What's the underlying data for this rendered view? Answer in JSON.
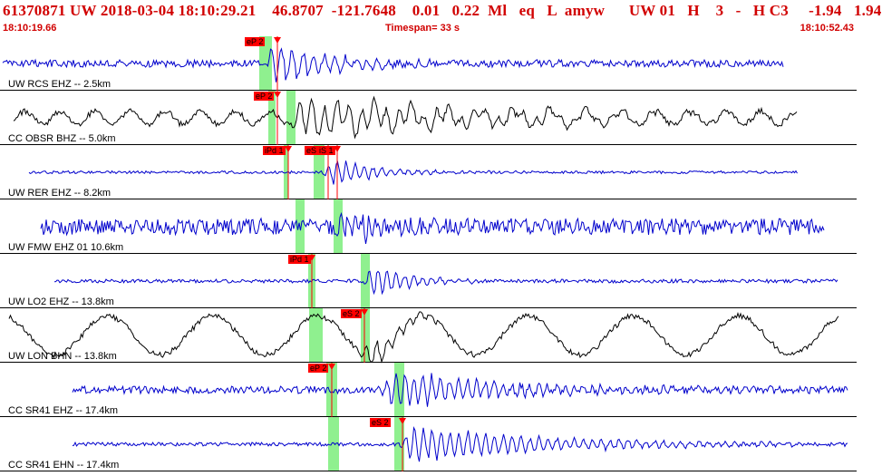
{
  "header": {
    "event_line": "61370871 UW 2018-03-04 18:10:29.21    46.8707  -121.7648    0.01   0.22  Ml   eq   L  amyw      UW 01   H    3   -   H C3     -1.94   1.94",
    "start_time": "18:10:19.66",
    "timespan": "Timespan=  33 s",
    "end_time": "18:10:52.43"
  },
  "colors": {
    "header_text": "#d10000",
    "trace_blue": "#0000cc",
    "trace_black": "#000000",
    "pick_band": "#8ff08f",
    "pick_marker": "#ff0000",
    "separator": "#000000"
  },
  "traces": [
    {
      "label": "UW RCS EHZ -- 2.5km",
      "color": "blue",
      "picks": [
        {
          "label": "eP 2"
        }
      ]
    },
    {
      "label": "CC OBSR BHZ -- 5.0km",
      "color": "black",
      "picks": [
        {
          "label": "eP 2"
        }
      ]
    },
    {
      "label": "UW RER EHZ -- 8.2km",
      "color": "blue",
      "picks": [
        {
          "label": "iPd 1"
        },
        {
          "label": "eS 2"
        },
        {
          "label": "iS 1"
        }
      ]
    },
    {
      "label": "UW FMW EHZ 01 10.6km",
      "color": "blue",
      "picks": []
    },
    {
      "label": "UW LO2 EHZ -- 13.8km",
      "color": "blue",
      "picks": [
        {
          "label": "iPd 1"
        }
      ]
    },
    {
      "label": "UW LON BHN -- 13.8km",
      "color": "black",
      "picks": [
        {
          "label": "eS 2"
        }
      ]
    },
    {
      "label": "CC SR41 EHZ -- 17.4km",
      "color": "blue",
      "picks": [
        {
          "label": "eP 2"
        }
      ]
    },
    {
      "label": "CC SR41 EHN -- 17.4km",
      "color": "blue",
      "picks": [
        {
          "label": "eS 2"
        }
      ]
    }
  ]
}
